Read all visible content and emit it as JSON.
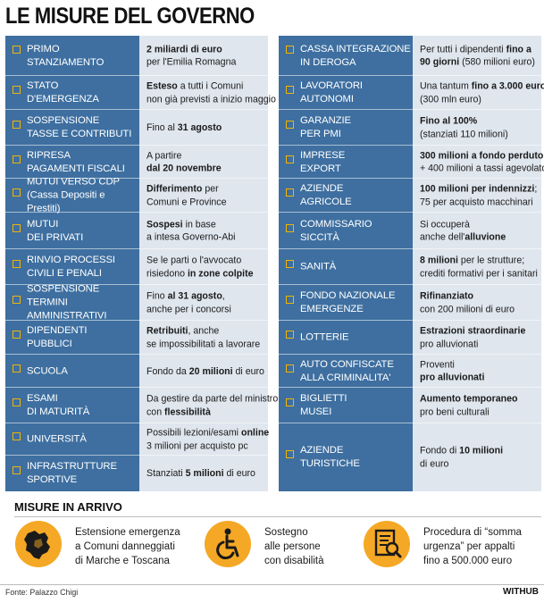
{
  "title": "LE MISURE DEL GOVERNO",
  "left_rows": [
    {
      "label": "PRIMO\nSTANZIAMENTO",
      "value": [
        [
          [
            "b",
            "2 miliardi di euro"
          ]
        ],
        [
          [
            "n",
            "per l'Emilia Romagna"
          ]
        ]
      ]
    },
    {
      "label": "STATO\nD'EMERGENZA",
      "value": [
        [
          [
            "b",
            "Esteso"
          ],
          [
            "n",
            " a tutti i Comuni"
          ]
        ],
        [
          [
            "n",
            "non già previsti a inizio maggio"
          ]
        ]
      ]
    },
    {
      "label": "SOSPENSIONE\nTASSE E CONTRIBUTI",
      "value": [
        [
          [
            "n",
            "Fino al "
          ],
          [
            "b",
            "31 agosto"
          ]
        ]
      ]
    },
    {
      "label": "RIPRESA\nPAGAMENTI FISCALI",
      "value": [
        [
          [
            "n",
            "A partire"
          ]
        ],
        [
          [
            "b",
            "dal 20 novembre"
          ]
        ]
      ]
    },
    {
      "label": "MUTUI VERSO CDP\n(Cassa Depositi e Prestiti)",
      "value": [
        [
          [
            "b",
            "Differimento"
          ],
          [
            "n",
            " per"
          ]
        ],
        [
          [
            "n",
            "Comuni e Province"
          ]
        ]
      ]
    },
    {
      "label": "MUTUI\nDEI PRIVATI",
      "value": [
        [
          [
            "b",
            "Sospesi"
          ],
          [
            "n",
            " in base"
          ]
        ],
        [
          [
            "n",
            "a intesa Governo-Abi"
          ]
        ]
      ]
    },
    {
      "label": "RINVIO PROCESSI\nCIVILI E PENALI",
      "value": [
        [
          [
            "n",
            "Se le parti o l'avvocato"
          ]
        ],
        [
          [
            "n",
            "risiedono "
          ],
          [
            "b",
            "in zone colpite"
          ]
        ]
      ]
    },
    {
      "label": "SOSPENSIONE\nTERMINI AMMINISTRATIVI",
      "value": [
        [
          [
            "n",
            "Fino "
          ],
          [
            "b",
            "al 31 agosto"
          ],
          [
            "n",
            ","
          ]
        ],
        [
          [
            "n",
            "anche per i concorsi"
          ]
        ]
      ]
    },
    {
      "label": "DIPENDENTI\nPUBBLICI",
      "value": [
        [
          [
            "b",
            "Retribuiti"
          ],
          [
            "n",
            ", anche"
          ]
        ],
        [
          [
            "n",
            "se impossibilitati a lavorare"
          ]
        ]
      ]
    },
    {
      "label": "SCUOLA",
      "value": [
        [
          [
            "n",
            "Fondo da "
          ],
          [
            "b",
            "20 milioni"
          ],
          [
            "n",
            " di euro"
          ]
        ]
      ]
    },
    {
      "label": "ESAMI\nDI MATURITÀ",
      "value": [
        [
          [
            "n",
            "Da gestire da parte del ministro"
          ]
        ],
        [
          [
            "n",
            "con "
          ],
          [
            "b",
            "flessibilità"
          ]
        ]
      ]
    },
    {
      "label": "UNIVERSITÀ",
      "value": [
        [
          [
            "n",
            "Possibili lezioni/esami "
          ],
          [
            "b",
            "online"
          ]
        ],
        [
          [
            "n",
            "3 milioni per acquisto pc"
          ]
        ]
      ]
    },
    {
      "label": "INFRASTRUTTURE\nSPORTIVE",
      "value": [
        [
          [
            "n",
            "Stanziati "
          ],
          [
            "b",
            "5 milioni"
          ],
          [
            "n",
            " di euro"
          ]
        ]
      ]
    }
  ],
  "right_rows": [
    {
      "label": "CASSA INTEGRAZIONE\nIN DEROGA",
      "value": [
        [
          [
            "n",
            "Per tutti i dipendenti "
          ],
          [
            "b",
            "fino a"
          ]
        ],
        [
          [
            "b",
            "90 giorni"
          ],
          [
            "n",
            " (580 milioni euro)"
          ]
        ]
      ]
    },
    {
      "label": "LAVORATORI\nAUTONOMI",
      "value": [
        [
          [
            "n",
            "Una tantum "
          ],
          [
            "b",
            "fino a 3.000 euro"
          ]
        ],
        [
          [
            "n",
            "(300 mln euro)"
          ]
        ]
      ]
    },
    {
      "label": "GARANZIE\nPER PMI",
      "value": [
        [
          [
            "b",
            "Fino al 100%"
          ]
        ],
        [
          [
            "n",
            "(stanziati 110 milioni)"
          ]
        ]
      ]
    },
    {
      "label": "IMPRESE\nEXPORT",
      "value": [
        [
          [
            "b",
            "300 milioni a fondo perduto"
          ]
        ],
        [
          [
            "n",
            "+ 400 milioni a tassi agevolato"
          ]
        ]
      ]
    },
    {
      "label": "AZIENDE\nAGRICOLE",
      "value": [
        [
          [
            "b",
            "100 milioni per indennizzi"
          ],
          [
            "n",
            ";"
          ]
        ],
        [
          [
            "n",
            "75 per acquisto macchinari"
          ]
        ]
      ]
    },
    {
      "label": "COMMISSARIO\nSICCITÀ",
      "value": [
        [
          [
            "n",
            "Si occuperà"
          ]
        ],
        [
          [
            "n",
            "anche dell'"
          ],
          [
            "b",
            "alluvione"
          ]
        ]
      ]
    },
    {
      "label": "SANITÀ",
      "value": [
        [
          [
            "b",
            "8 milioni"
          ],
          [
            "n",
            " per le strutture;"
          ]
        ],
        [
          [
            "n",
            "crediti formativi per i sanitari"
          ]
        ]
      ]
    },
    {
      "label": "FONDO NAZIONALE\nEMERGENZE",
      "value": [
        [
          [
            "b",
            "Rifinanziato"
          ]
        ],
        [
          [
            "n",
            "con 200 milioni di euro"
          ]
        ]
      ]
    },
    {
      "label": "LOTTERIE",
      "value": [
        [
          [
            "b",
            "Estrazioni straordinarie"
          ]
        ],
        [
          [
            "n",
            "pro alluvionati"
          ]
        ]
      ]
    },
    {
      "label": "AUTO CONFISCATE\nALLA CRIMINALITA'",
      "value": [
        [
          [
            "n",
            "Proventi"
          ]
        ],
        [
          [
            "b",
            "pro alluvionati"
          ]
        ]
      ]
    },
    {
      "label": "BIGLIETTI\nMUSEI",
      "value": [
        [
          [
            "b",
            "Aumento temporaneo"
          ]
        ],
        [
          [
            "n",
            "pro beni culturali"
          ]
        ]
      ]
    },
    {
      "label": "AZIENDE\nTURISTICHE",
      "value": [
        [
          [
            "n",
            "Fondo di "
          ],
          [
            "b",
            "10 milioni"
          ]
        ],
        [
          [
            "n",
            "di euro"
          ]
        ]
      ]
    }
  ],
  "arrivo": {
    "heading": "MISURE IN ARRIVO",
    "items": [
      {
        "icon": "map-icon",
        "lines": [
          "Estensione emergenza",
          "a Comuni danneggiati",
          "di Marche e Toscana"
        ]
      },
      {
        "icon": "wheelchair-icon",
        "lines": [
          "Sostegno",
          "alle persone",
          "con disabilità"
        ]
      },
      {
        "icon": "document-search-icon",
        "lines": [
          "Procedura di “somma",
          "urgenza” per appalti",
          "fino a 500.000 euro"
        ]
      }
    ]
  },
  "footer": {
    "source": "Fonte: Palazzo Chigi",
    "brand": "WITHUB"
  },
  "colors": {
    "label_bg": "#3e6fa0",
    "value_bg": "#dfe6ee",
    "accent": "#f4a825",
    "bullet": "#f4b400"
  }
}
